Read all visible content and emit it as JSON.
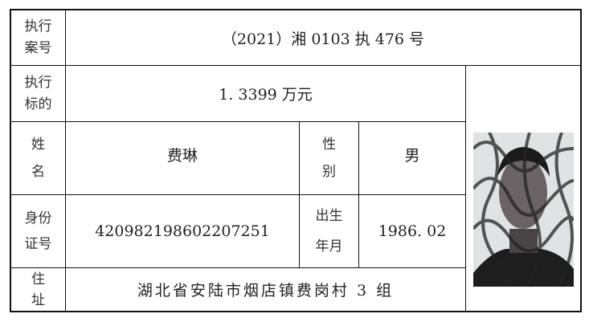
{
  "case_no": {
    "label_1": "执行",
    "label_2": "案号",
    "value": "（2021）湘 0103 执 476 号"
  },
  "amount": {
    "label_1": "执行",
    "label_2": "标的",
    "value": "1. 3399 万元"
  },
  "name": {
    "label_1": "姓",
    "label_2": "名",
    "value": "费琳"
  },
  "gender": {
    "label_1": "性",
    "label_2": "别",
    "value": "男"
  },
  "id_no": {
    "label_1": "身份",
    "label_2": "证号",
    "value": "420982198602207251"
  },
  "birth": {
    "label_1": "出生",
    "label_2": "年月",
    "value": "1986. 02"
  },
  "address": {
    "label_1": "住",
    "label_2": "址",
    "value": "湖北省安陆市烟店镇费岗村 3 组"
  },
  "photo": {
    "icon": "person-photo"
  }
}
